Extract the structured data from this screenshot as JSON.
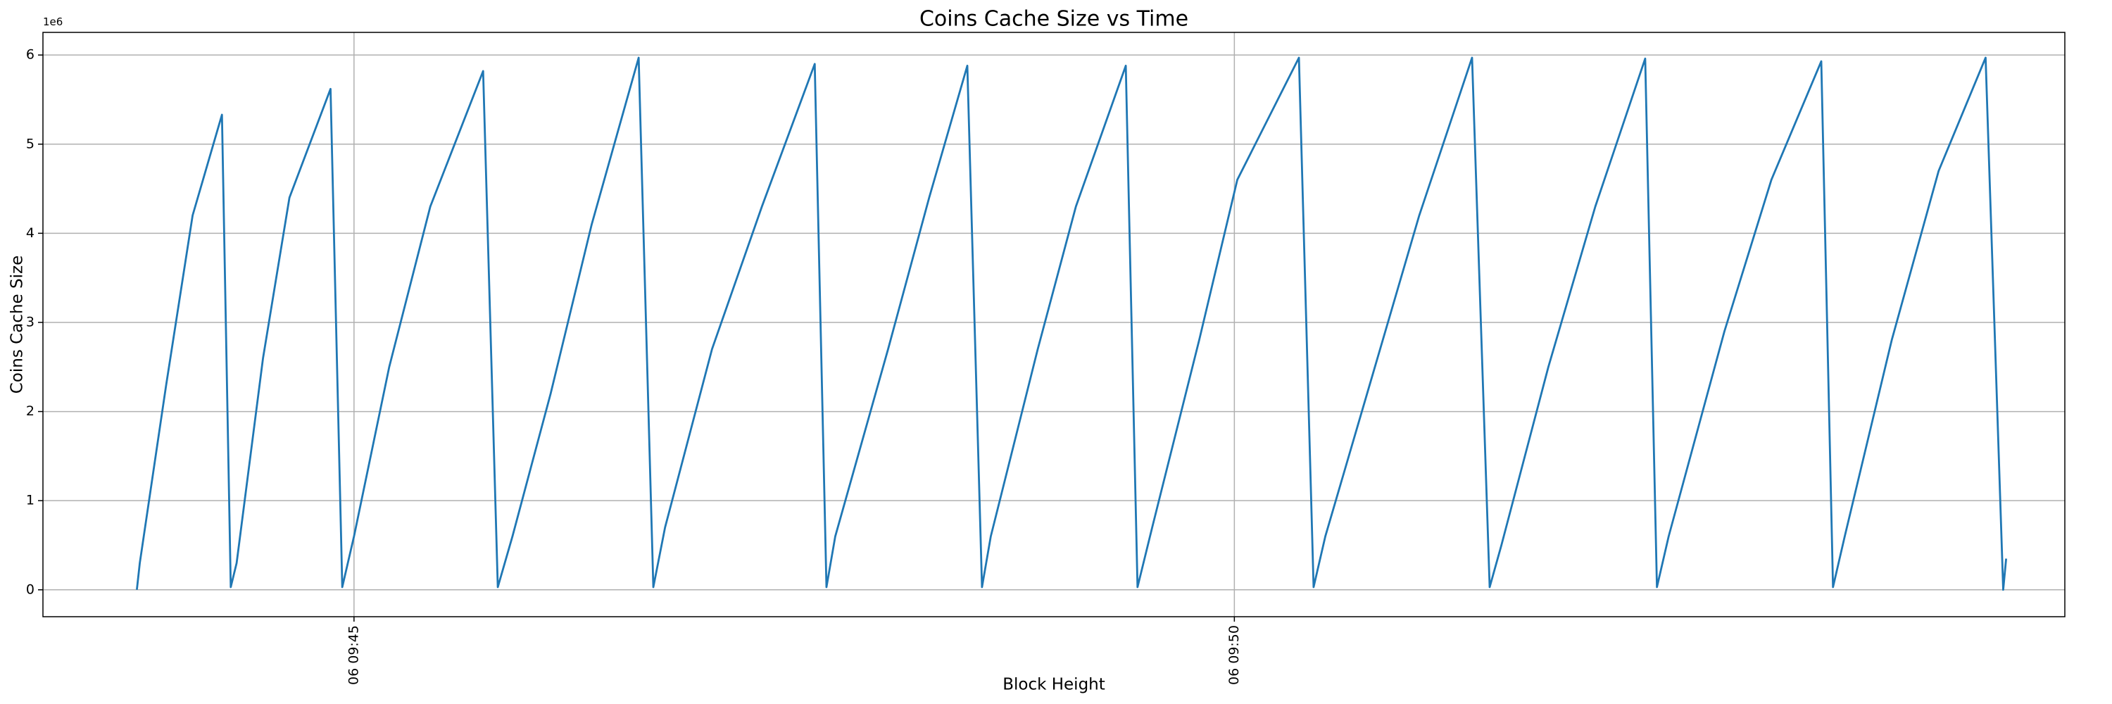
{
  "chart_data": {
    "type": "line",
    "title": "Coins Cache Size vs Time",
    "xlabel": "Block Height",
    "ylabel": "Coins Cache Size",
    "y_offset_label": "1e6",
    "x": [
      "06 09:43:46",
      "06 09:43:47",
      "06 09:43:56",
      "06 09:44:05",
      "06 09:44:15",
      "06 09:44:18",
      "06 09:44:20",
      "06 09:44:29",
      "06 09:44:38",
      "06 09:44:52",
      "06 09:44:56",
      "06 09:45:00",
      "06 09:45:12",
      "06 09:45:26",
      "06 09:45:44",
      "06 09:45:49",
      "06 09:45:54",
      "06 09:46:07",
      "06 09:46:21",
      "06 09:46:37",
      "06 09:46:42",
      "06 09:46:46",
      "06 09:47:02",
      "06 09:47:19",
      "06 09:47:37",
      "06 09:47:41",
      "06 09:47:44",
      "06 09:48:02",
      "06 09:48:16",
      "06 09:48:29",
      "06 09:48:34",
      "06 09:48:37",
      "06 09:48:53",
      "06 09:49:06",
      "06 09:49:23",
      "06 09:49:27",
      "06 09:49:32",
      "06 09:49:48",
      "06 09:50:01",
      "06 09:50:22",
      "06 09:50:27",
      "06 09:50:31",
      "06 09:50:47",
      "06 09:51:03",
      "06 09:51:21",
      "06 09:51:27",
      "06 09:51:31",
      "06 09:51:47",
      "06 09:52:03",
      "06 09:52:20",
      "06 09:52:24",
      "06 09:52:28",
      "06 09:52:47",
      "06 09:53:03",
      "06 09:53:20",
      "06 09:53:24",
      "06 09:53:28",
      "06 09:53:44",
      "06 09:54:00",
      "06 09:54:16",
      "06 09:54:22",
      "06 09:54:23"
    ],
    "series": [
      {
        "name": "Coins Cache Size",
        "color": "#1f77b4",
        "values": [
          0,
          300000,
          2300000,
          4200000,
          5330000,
          30000,
          300000,
          2600000,
          4400000,
          5620000,
          30000,
          600000,
          2500000,
          4300000,
          5820000,
          30000,
          600000,
          2200000,
          4100000,
          5970000,
          30000,
          700000,
          2700000,
          4300000,
          5900000,
          30000,
          600000,
          2700000,
          4400000,
          5880000,
          30000,
          600000,
          2700000,
          4300000,
          5880000,
          30000,
          700000,
          2800000,
          4600000,
          5970000,
          30000,
          600000,
          2400000,
          4200000,
          5970000,
          30000,
          500000,
          2500000,
          4300000,
          5960000,
          30000,
          600000,
          2900000,
          4600000,
          5930000,
          30000,
          600000,
          2800000,
          4700000,
          5970000,
          0,
          350000
        ]
      }
    ],
    "xlim": [
      "06 09:43:14",
      "06 09:54:43"
    ],
    "xticks": [
      "06 09:45",
      "06 09:50"
    ],
    "ylim": [
      -302000,
      6254000
    ],
    "yticks": [
      {
        "value": 0,
        "label": "0"
      },
      {
        "value": 1000000,
        "label": "1"
      },
      {
        "value": 2000000,
        "label": "2"
      },
      {
        "value": 3000000,
        "label": "3"
      },
      {
        "value": 4000000,
        "label": "4"
      },
      {
        "value": 5000000,
        "label": "5"
      },
      {
        "value": 6000000,
        "label": "6"
      }
    ],
    "grid": true
  }
}
